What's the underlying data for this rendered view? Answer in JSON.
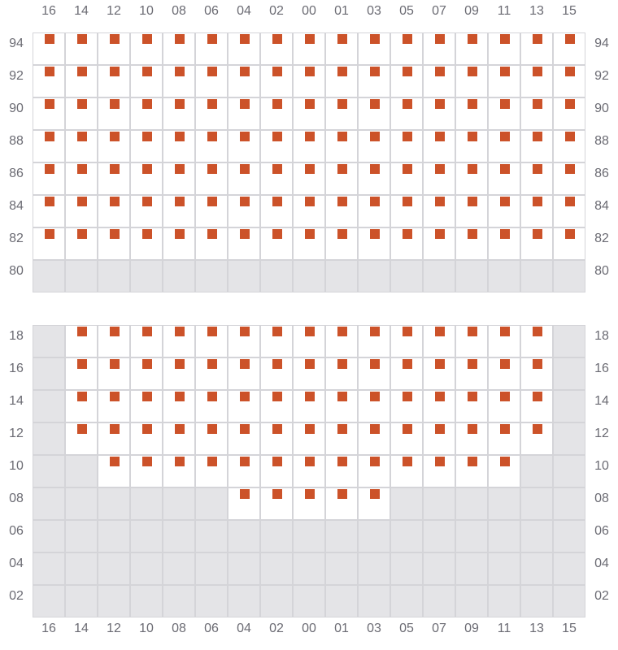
{
  "columns": [
    "16",
    "14",
    "12",
    "10",
    "08",
    "06",
    "04",
    "02",
    "00",
    "01",
    "03",
    "05",
    "07",
    "09",
    "11",
    "13",
    "15"
  ],
  "colors": {
    "marker": "#cc5229",
    "available": "#ffffff",
    "unavailable": "#e4e4e7",
    "grid": "#d4d4d8"
  },
  "sections": [
    {
      "rows": [
        {
          "label": "94",
          "active": [
            "16",
            "14",
            "12",
            "10",
            "08",
            "06",
            "04",
            "02",
            "00",
            "01",
            "03",
            "05",
            "07",
            "09",
            "11",
            "13",
            "15"
          ]
        },
        {
          "label": "92",
          "active": [
            "16",
            "14",
            "12",
            "10",
            "08",
            "06",
            "04",
            "02",
            "00",
            "01",
            "03",
            "05",
            "07",
            "09",
            "11",
            "13",
            "15"
          ]
        },
        {
          "label": "90",
          "active": [
            "16",
            "14",
            "12",
            "10",
            "08",
            "06",
            "04",
            "02",
            "00",
            "01",
            "03",
            "05",
            "07",
            "09",
            "11",
            "13",
            "15"
          ]
        },
        {
          "label": "88",
          "active": [
            "16",
            "14",
            "12",
            "10",
            "08",
            "06",
            "04",
            "02",
            "00",
            "01",
            "03",
            "05",
            "07",
            "09",
            "11",
            "13",
            "15"
          ]
        },
        {
          "label": "86",
          "active": [
            "16",
            "14",
            "12",
            "10",
            "08",
            "06",
            "04",
            "02",
            "00",
            "01",
            "03",
            "05",
            "07",
            "09",
            "11",
            "13",
            "15"
          ]
        },
        {
          "label": "84",
          "active": [
            "16",
            "14",
            "12",
            "10",
            "08",
            "06",
            "04",
            "02",
            "00",
            "01",
            "03",
            "05",
            "07",
            "09",
            "11",
            "13",
            "15"
          ]
        },
        {
          "label": "82",
          "active": [
            "16",
            "14",
            "12",
            "10",
            "08",
            "06",
            "04",
            "02",
            "00",
            "01",
            "03",
            "05",
            "07",
            "09",
            "11",
            "13",
            "15"
          ]
        },
        {
          "label": "80",
          "active": []
        }
      ]
    },
    {
      "rows": [
        {
          "label": "18",
          "active": [
            "14",
            "12",
            "10",
            "08",
            "06",
            "04",
            "02",
            "00",
            "01",
            "03",
            "05",
            "07",
            "09",
            "11",
            "13"
          ]
        },
        {
          "label": "16",
          "active": [
            "14",
            "12",
            "10",
            "08",
            "06",
            "04",
            "02",
            "00",
            "01",
            "03",
            "05",
            "07",
            "09",
            "11",
            "13"
          ]
        },
        {
          "label": "14",
          "active": [
            "14",
            "12",
            "10",
            "08",
            "06",
            "04",
            "02",
            "00",
            "01",
            "03",
            "05",
            "07",
            "09",
            "11",
            "13"
          ]
        },
        {
          "label": "12",
          "active": [
            "14",
            "12",
            "10",
            "08",
            "06",
            "04",
            "02",
            "00",
            "01",
            "03",
            "05",
            "07",
            "09",
            "11",
            "13"
          ]
        },
        {
          "label": "10",
          "active": [
            "12",
            "10",
            "08",
            "06",
            "04",
            "02",
            "00",
            "01",
            "03",
            "05",
            "07",
            "09",
            "11"
          ]
        },
        {
          "label": "08",
          "active": [
            "04",
            "02",
            "00",
            "01",
            "03"
          ]
        },
        {
          "label": "06",
          "active": []
        },
        {
          "label": "04",
          "active": []
        },
        {
          "label": "02",
          "active": []
        }
      ]
    }
  ]
}
